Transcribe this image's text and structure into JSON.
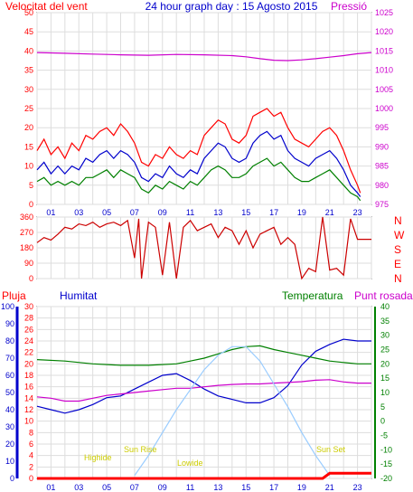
{
  "chart_data": [
    {
      "type": "line",
      "title": "24 hour graph day : 15 Agosto 2015",
      "ylabel": "Velocitat del vent",
      "y2label": "Pressió",
      "ylim": [
        0,
        50
      ],
      "y2lim": [
        975,
        1025
      ],
      "yticks": [
        0,
        5,
        10,
        15,
        20,
        25,
        30,
        35,
        40,
        45,
        50
      ],
      "y2ticks": [
        975,
        980,
        985,
        990,
        995,
        1000,
        1005,
        1010,
        1015,
        1020,
        1025
      ],
      "xlim": [
        0,
        24
      ],
      "xticks": [
        "01",
        "03",
        "05",
        "07",
        "09",
        "11",
        "13",
        "15",
        "17",
        "19",
        "21",
        "23"
      ],
      "grid": true,
      "series": [
        {
          "color": "#ff0000",
          "axis": "left",
          "x": [
            0,
            0.5,
            1,
            1.5,
            2,
            2.5,
            3,
            3.5,
            4,
            4.5,
            5,
            5.5,
            6,
            6.5,
            7,
            7.5,
            8,
            8.5,
            9,
            9.5,
            10,
            10.5,
            11,
            11.5,
            12,
            12.5,
            13,
            13.5,
            14,
            14.5,
            15,
            15.5,
            16,
            16.5,
            17,
            17.5,
            18,
            18.5,
            19,
            19.5,
            20,
            20.5,
            21,
            21.5,
            22,
            22.5,
            23,
            23.2
          ],
          "y": [
            14,
            17,
            13,
            15,
            12,
            16,
            14,
            18,
            17,
            19,
            20,
            18,
            21,
            19,
            16,
            11,
            10,
            13,
            12,
            15,
            13,
            12,
            14,
            13,
            18,
            20,
            22,
            21,
            17,
            16,
            18,
            23,
            24,
            25,
            23,
            24,
            20,
            17,
            16,
            15,
            17,
            19,
            20,
            18,
            14,
            9,
            5,
            3
          ]
        },
        {
          "color": "#0000cc",
          "axis": "left",
          "x": [
            0,
            0.5,
            1,
            1.5,
            2,
            2.5,
            3,
            3.5,
            4,
            4.5,
            5,
            5.5,
            6,
            6.5,
            7,
            7.5,
            8,
            8.5,
            9,
            9.5,
            10,
            10.5,
            11,
            11.5,
            12,
            12.5,
            13,
            13.5,
            14,
            14.5,
            15,
            15.5,
            16,
            16.5,
            17,
            17.5,
            18,
            18.5,
            19,
            19.5,
            20,
            20.5,
            21,
            21.5,
            22,
            22.5,
            23,
            23.2
          ],
          "y": [
            9,
            11,
            8,
            10,
            8,
            10,
            9,
            12,
            11,
            13,
            14,
            12,
            14,
            13,
            11,
            7,
            6,
            8,
            7,
            10,
            8,
            7,
            9,
            8,
            12,
            14,
            16,
            15,
            12,
            11,
            12,
            16,
            18,
            19,
            17,
            18,
            14,
            12,
            11,
            10,
            12,
            13,
            14,
            12,
            9,
            5,
            3,
            2
          ]
        },
        {
          "color": "#008000",
          "axis": "left",
          "x": [
            0,
            0.5,
            1,
            1.5,
            2,
            2.5,
            3,
            3.5,
            4,
            4.5,
            5,
            5.5,
            6,
            6.5,
            7,
            7.5,
            8,
            8.5,
            9,
            9.5,
            10,
            10.5,
            11,
            11.5,
            12,
            12.5,
            13,
            13.5,
            14,
            14.5,
            15,
            15.5,
            16,
            16.5,
            17,
            17.5,
            18,
            18.5,
            19,
            19.5,
            20,
            20.5,
            21,
            21.5,
            22,
            22.5,
            23,
            23.2
          ],
          "y": [
            6,
            7,
            5,
            6,
            5,
            6,
            5,
            7,
            7,
            8,
            9,
            7,
            9,
            8,
            7,
            4,
            3,
            5,
            4,
            6,
            5,
            4,
            6,
            5,
            7,
            9,
            10,
            9,
            7,
            7,
            8,
            10,
            11,
            12,
            10,
            11,
            9,
            7,
            6,
            6,
            7,
            8,
            9,
            7,
            5,
            3,
            2,
            1
          ]
        },
        {
          "color": "#cc00cc",
          "axis": "right",
          "x": [
            0,
            2,
            4,
            6,
            8,
            10,
            12,
            14,
            15,
            16,
            17,
            18,
            19,
            20,
            21,
            22,
            23,
            24
          ],
          "y": [
            1014.6,
            1014.4,
            1014.2,
            1014.0,
            1013.9,
            1014.1,
            1014.0,
            1013.8,
            1013.5,
            1013.0,
            1012.6,
            1012.5,
            1012.7,
            1013.0,
            1013.4,
            1013.8,
            1014.3,
            1014.6
          ]
        }
      ]
    },
    {
      "type": "line",
      "ylim": [
        0,
        360
      ],
      "yticks": [
        0,
        90,
        180,
        270,
        360
      ],
      "compass": [
        "N",
        "W",
        "S",
        "E",
        "N"
      ],
      "xlim": [
        0,
        24
      ],
      "series": [
        {
          "color": "#cc0000",
          "x": [
            0,
            0.5,
            1,
            1.5,
            2,
            2.5,
            3,
            3.5,
            4,
            4.5,
            5,
            5.5,
            6,
            6.5,
            7,
            7.3,
            7.5,
            8,
            8.5,
            9,
            9.5,
            10,
            10.5,
            11,
            11.5,
            12,
            12.5,
            13,
            13.5,
            14,
            14.5,
            15,
            15.5,
            16,
            16.5,
            17,
            17.5,
            18,
            18.5,
            19,
            19.5,
            20,
            20.5,
            21,
            21.5,
            22,
            22.5,
            23,
            24
          ],
          "y": [
            210,
            240,
            225,
            260,
            300,
            290,
            320,
            310,
            330,
            300,
            320,
            330,
            310,
            340,
            120,
            350,
            0,
            330,
            300,
            20,
            330,
            0,
            300,
            340,
            280,
            300,
            320,
            240,
            300,
            280,
            200,
            280,
            180,
            260,
            280,
            300,
            200,
            240,
            200,
            0,
            60,
            40,
            360,
            50,
            60,
            20,
            350,
            230,
            230
          ]
        }
      ]
    },
    {
      "type": "line",
      "rain_label": "Pluja",
      "humidity_label": "Humitat",
      "temperature_label": "Temperatura",
      "dewpoint_label": "Punt rosada",
      "rain_ylim": [
        0,
        30
      ],
      "humidity_ylim": [
        0,
        100
      ],
      "temperature_ylim": [
        -20,
        40
      ],
      "rain_ticks": [
        0,
        2,
        4,
        6,
        8,
        10,
        12,
        14,
        16,
        18,
        20,
        22,
        24,
        26,
        28,
        30
      ],
      "humidity_ticks": [
        0,
        10,
        20,
        30,
        40,
        50,
        60,
        70,
        80,
        90,
        100
      ],
      "temperature_ticks": [
        -20,
        -15,
        -10,
        -5,
        0,
        5,
        10,
        15,
        20,
        25,
        30,
        35,
        40
      ],
      "xticks": [
        "01",
        "03",
        "05",
        "07",
        "09",
        "11",
        "13",
        "15",
        "17",
        "19",
        "21",
        "23"
      ],
      "xlim": [
        0,
        24
      ],
      "annotations": [
        "Highide",
        "Sun Rise",
        "Lowide",
        "Sun Set"
      ],
      "series": [
        {
          "color": "#0000cc",
          "axis": "humidity",
          "x": [
            0,
            1,
            2,
            3,
            4,
            5,
            6,
            7,
            8,
            9,
            10,
            11,
            12,
            13,
            14,
            15,
            16,
            17,
            18,
            19,
            20,
            21,
            22,
            23,
            24
          ],
          "y": [
            42,
            40,
            38,
            40,
            43,
            47,
            48,
            52,
            56,
            60,
            61,
            57,
            52,
            48,
            46,
            44,
            44,
            47,
            54,
            66,
            74,
            78,
            81,
            80,
            80
          ]
        },
        {
          "color": "#008000",
          "axis": "temperature",
          "x": [
            0,
            2,
            4,
            6,
            7,
            8,
            10,
            11,
            12,
            13,
            14,
            15,
            16,
            17,
            18,
            19,
            20,
            21,
            22,
            23,
            24
          ],
          "y": [
            21.5,
            21,
            20,
            19.5,
            19.5,
            19.5,
            20,
            21,
            22,
            23.5,
            25,
            26,
            26.3,
            25,
            24,
            23,
            22,
            21,
            20.5,
            20,
            20
          ]
        },
        {
          "color": "#cc00cc",
          "axis": "temperature",
          "x": [
            0,
            1,
            2,
            3,
            4,
            5,
            6,
            7,
            8,
            9,
            10,
            11,
            12,
            13,
            14,
            15,
            16,
            17,
            18,
            19,
            20,
            21,
            22,
            23,
            24
          ],
          "y": [
            8.5,
            8,
            7,
            7,
            8,
            9,
            9.5,
            10,
            10.5,
            11,
            11.5,
            11.5,
            12,
            12.5,
            12.8,
            13,
            13,
            13.3,
            13.5,
            13.8,
            14.3,
            14.5,
            13.7,
            13.3,
            13.3
          ]
        },
        {
          "color": "#99ccff",
          "axis": "temperature",
          "x": [
            7,
            8,
            9,
            10,
            11,
            12,
            13,
            14,
            15,
            16,
            17,
            18,
            19,
            20,
            21
          ],
          "y": [
            -19,
            -12,
            -4,
            4,
            11,
            18,
            23,
            26,
            26,
            21,
            13,
            5,
            -4,
            -12,
            -19
          ]
        },
        {
          "color": "#ff0000",
          "axis": "rain",
          "x": [
            0,
            20.5,
            21,
            24
          ],
          "y": [
            0,
            0,
            0.9,
            0.9
          ]
        }
      ]
    }
  ]
}
